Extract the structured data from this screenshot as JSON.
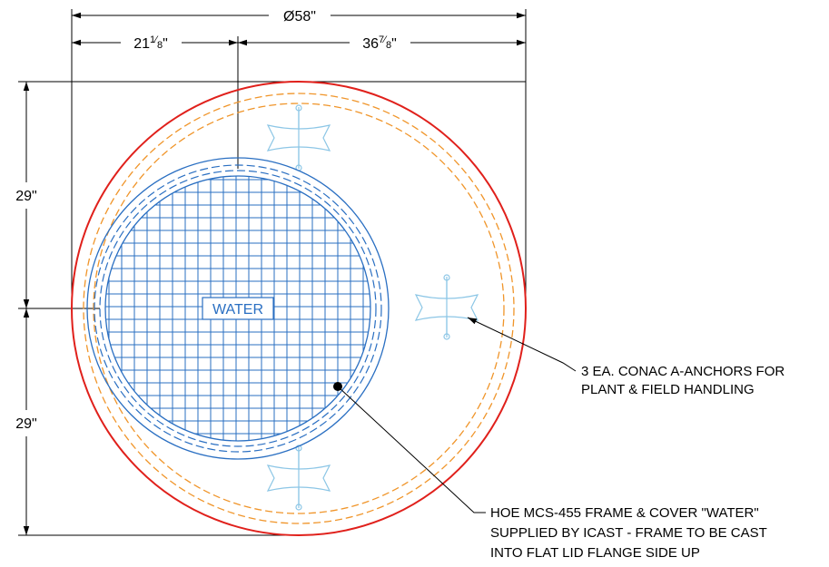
{
  "dimensions": {
    "overall_diameter": "Ø58\"",
    "left_offset": {
      "whole": "21",
      "num": "1",
      "den": "8",
      "unit": "\""
    },
    "right_offset": {
      "whole": "36",
      "num": "7",
      "den": "8",
      "unit": "\""
    },
    "upper_half": "29\"",
    "lower_half": "29\""
  },
  "cover_label": "WATER",
  "notes": {
    "anchors": [
      "3 EA. CONAC A-ANCHORS FOR",
      "PLANT & FIELD HANDLING"
    ],
    "frame": [
      "HOE MCS-455 FRAME & COVER \"WATER\"",
      "SUPPLIED BY ICAST - FRAME TO BE CAST",
      "INTO FLAT LID FLANGE SIDE UP"
    ]
  },
  "colors": {
    "outer_circle": "#e0201b",
    "orange_dashed": "#f0952a",
    "blue": "#2a6fc2",
    "anchor": "#8cc6e6",
    "dimension": "#000000"
  }
}
